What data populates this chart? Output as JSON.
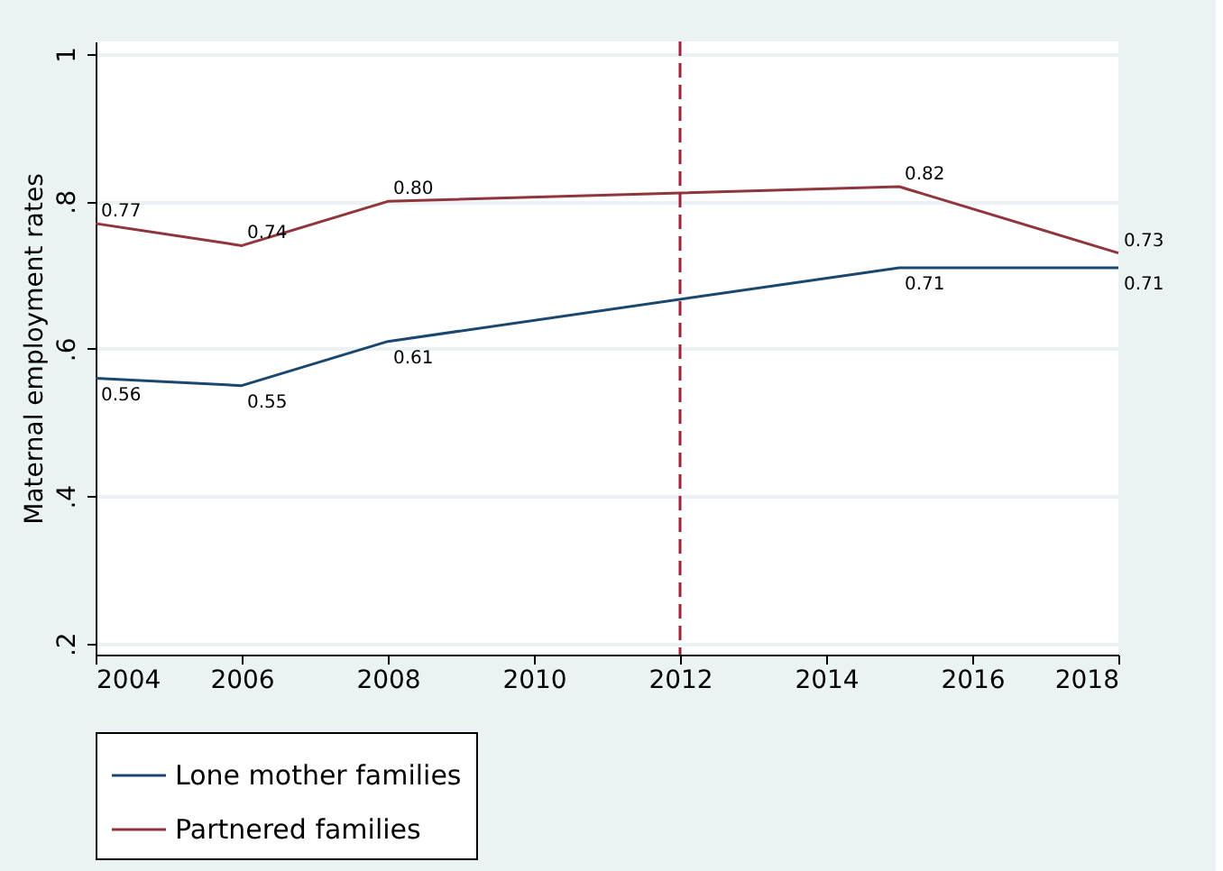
{
  "chart_data": {
    "type": "line",
    "ylabel": "Maternal employment rates",
    "x": [
      2004,
      2006,
      2008,
      2015,
      2018
    ],
    "series": [
      {
        "name": "Lone mother families",
        "color": "#1a476f",
        "values": [
          0.56,
          0.55,
          0.61,
          0.71,
          0.71
        ],
        "value_labels": [
          "0.56",
          "0.55",
          "0.61",
          "0.71",
          "0.71"
        ]
      },
      {
        "name": "Partnered families",
        "color": "#90353b",
        "values": [
          0.77,
          0.74,
          0.8,
          0.82,
          0.73
        ],
        "value_labels": [
          "0.77",
          "0.74",
          "0.80",
          "0.82",
          "0.73"
        ]
      }
    ],
    "xlim": [
      2004,
      2018
    ],
    "xticks": [
      2004,
      2006,
      2008,
      2010,
      2012,
      2014,
      2016,
      2018
    ],
    "ylim": [
      0.185,
      1.017
    ],
    "yticks": [
      {
        "value": 0.2,
        "label": ".2"
      },
      {
        "value": 0.4,
        "label": ".4"
      },
      {
        "value": 0.6,
        "label": ".6"
      },
      {
        "value": 0.8,
        "label": ".8"
      },
      {
        "value": 1,
        "label": "1"
      }
    ],
    "ref_lines": [
      {
        "axis": "x",
        "value": 2012,
        "label": null,
        "color": "#a3203a",
        "line_style": "dashed"
      }
    ],
    "grid": "y",
    "legend": "bottom",
    "marker": "none",
    "line_style": "solid"
  }
}
